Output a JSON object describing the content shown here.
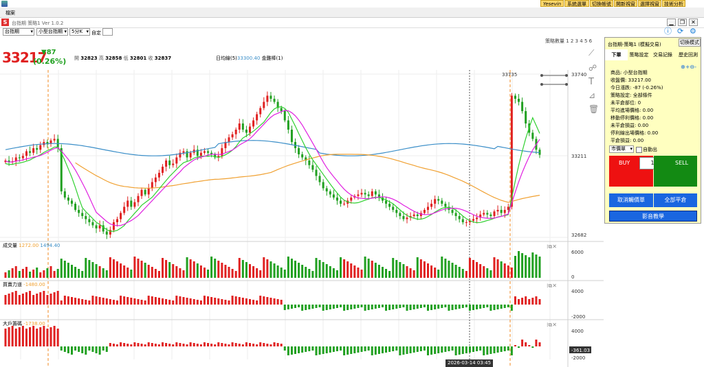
{
  "menu": {
    "file": "檔案"
  },
  "top_buttons": [
    {
      "label": "Yesevin",
      "color": "#e8b030"
    },
    {
      "label": "系統選單"
    },
    {
      "label": "切換帳號"
    },
    {
      "label": "開新視窗"
    },
    {
      "label": "選擇視窗"
    },
    {
      "label": "技術分析"
    }
  ],
  "window": {
    "title": "台指期 策略1 Ver 1.0.2"
  },
  "toolbar": {
    "symbol": "台指期",
    "product": "小型台指期",
    "interval": "5分K",
    "custom_label": "自定"
  },
  "strategy_count": "策略數量",
  "strategy_numbers": [
    "1",
    "2",
    "3",
    "4",
    "5",
    "6"
  ],
  "quote": {
    "price": "33217",
    "change": "▼87",
    "change_pct": "(0.26%)",
    "open_label": "開",
    "open": "32823",
    "high_label": "高",
    "high": "32858",
    "low_label": "低",
    "low": "32801",
    "close_label": "收",
    "close": "32837"
  },
  "indicator_label": {
    "ma_name": "日均線(5)",
    "ma_value": "33300.40",
    "line2": "金雞棒(1)"
  },
  "price_axis": {
    "top": "33740",
    "mid": "33211",
    "bottom": "32682",
    "marker": "33735"
  },
  "volume_panel": {
    "title": "成交量",
    "v1": "1272.00",
    "v2": "1494.40",
    "axis_top": "6000",
    "axis_bottom": "0"
  },
  "force_panel": {
    "title": "買賣力道",
    "value": "-1480.00",
    "axis_top": "4000",
    "axis_bottom": "-2000"
  },
  "big_panel": {
    "title": "大戶籌碼",
    "value": "-1738.00",
    "axis_top": "4000",
    "axis_bottom": "-2000",
    "current": "-361.03"
  },
  "crosshair_time": "2026-03-14  03:45",
  "right_panel": {
    "title": "台指期-策略1 (模擬交易)",
    "switch_mode": "切換模式",
    "tabs": [
      "下單",
      "策略設定",
      "交易記錄",
      "歷史回測"
    ],
    "info": [
      "商品: 小型台指期",
      "收盤價: 33217.00",
      "今日漲跌: -87 (-0.26%)",
      "策略設定: 全部條件",
      "未平倉部位: 0",
      "平均進場價格: 0.00",
      "移動停利價格: 0.00",
      "未平倉損益: 0.00",
      "停利線出場價格: 0.00",
      "平倉損益: 0.00"
    ],
    "order_type": "市價單",
    "auto_out": "自動出",
    "buy": "BUY",
    "sell": "SELL",
    "qty": "1",
    "cancel_btn": "取消觸價單",
    "close_all_btn": "全部平倉",
    "tutorial_btn": "影音教學"
  },
  "colors": {
    "up": "#e02020",
    "down": "#20a020",
    "ma_blue": "#3a8ec8",
    "ma_orange": "#f0a030",
    "green_line": "#30d030",
    "magenta_line": "#e020e0"
  },
  "chart_data": {
    "type": "candlestick",
    "ylim": [
      32682,
      33740
    ],
    "closes": [
      33180,
      33170,
      33175,
      33200,
      33195,
      33210,
      33240,
      33230,
      33260,
      33250,
      33280,
      33300,
      33290,
      33310,
      33320,
      33260,
      32980,
      32940,
      32920,
      32900,
      32860,
      32840,
      32820,
      32800,
      32780,
      32760,
      32740,
      32760,
      32720,
      32700,
      32730,
      32780,
      32800,
      32840,
      32880,
      32920,
      32880,
      32910,
      32950,
      32990,
      32960,
      33000,
      33040,
      33070,
      33100,
      33140,
      33180,
      33150,
      33160,
      33200,
      33230,
      33240,
      33200,
      33230,
      33250,
      33210,
      33230,
      33240,
      33230,
      33220,
      33200,
      33210,
      33260,
      33300,
      33330,
      33350,
      33380,
      33420,
      33380,
      33360,
      33400,
      33440,
      33480,
      33520,
      33560,
      33600,
      33580,
      33560,
      33520,
      33500,
      33440,
      33380,
      33300,
      33260,
      33220,
      33200,
      33180,
      33150,
      33120,
      33080,
      33040,
      33000,
      32980,
      32960,
      32940,
      32920,
      32900,
      32900,
      32920,
      32940,
      32950,
      32960,
      32970,
      32960,
      32950,
      32980,
      32960,
      32940,
      32920,
      32900,
      32880,
      32860,
      32840,
      32820,
      32800,
      32810,
      32820,
      32830,
      32820,
      32840,
      32860,
      32880,
      32900,
      32930,
      32920,
      32900,
      32880,
      32860,
      32840,
      32820,
      32800,
      32780,
      32780,
      32790,
      32800,
      32810,
      32830,
      32840,
      32830,
      32820,
      32850,
      32860,
      32840,
      32860,
      32880,
      33600,
      33580,
      33560,
      33500,
      33420,
      33360,
      33320,
      33250,
      33217
    ]
  }
}
